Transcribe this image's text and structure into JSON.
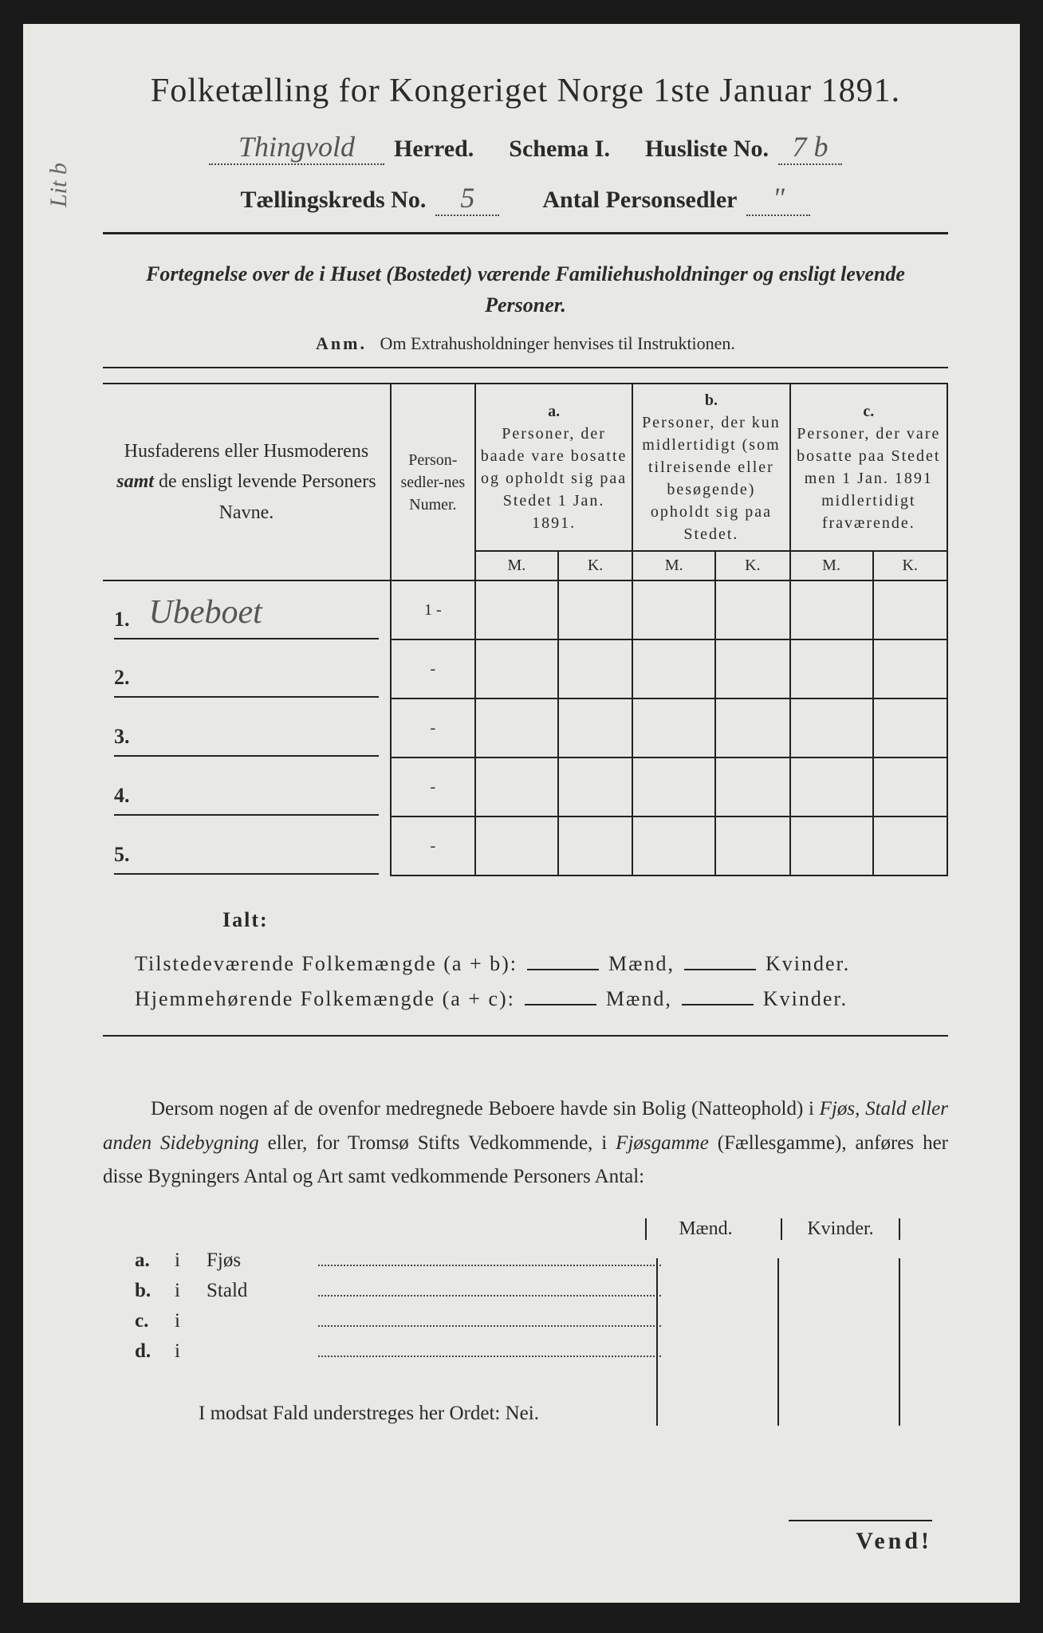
{
  "title": "Folketælling for Kongeriget Norge 1ste Januar 1891.",
  "header": {
    "herred_value": "Thingvold",
    "herred_label": "Herred.",
    "schema_label": "Schema I.",
    "husliste_label": "Husliste No.",
    "husliste_value": "7 b",
    "kreds_label": "Tællingskreds No.",
    "kreds_value": "5",
    "antal_label": "Antal Personsedler",
    "antal_value": "\""
  },
  "subtitle": "Fortegnelse over de i Huset (Bostedet) værende Familiehusholdninger og ensligt levende Personer.",
  "anm_label": "Anm.",
  "anm_text": "Om Extrahusholdninger henvises til Instruktionen.",
  "table": {
    "col1": "Husfaderens eller Husmoderens samt de ensligt levende Personers Navne.",
    "col2": "Person-sedler-nes Numer.",
    "group_a_label": "a.",
    "group_a": "Personer, der baade vare bosatte og opholdt sig paa Stedet 1 Jan. 1891.",
    "group_b_label": "b.",
    "group_b": "Personer, der kun midlertidigt (som tilreisende eller besøgende) opholdt sig paa Stedet.",
    "group_c_label": "c.",
    "group_c": "Personer, der vare bosatte paa Stedet men 1 Jan. 1891 midlertidigt fraværende.",
    "m": "M.",
    "k": "K.",
    "rows": [
      {
        "num": "1.",
        "name": "Ubeboet",
        "pnum": "1 -"
      },
      {
        "num": "2.",
        "name": "",
        "pnum": "-"
      },
      {
        "num": "3.",
        "name": "",
        "pnum": "-"
      },
      {
        "num": "4.",
        "name": "",
        "pnum": "-"
      },
      {
        "num": "5.",
        "name": "",
        "pnum": "-"
      }
    ]
  },
  "ialt": "Ialt:",
  "summary": {
    "line1_a": "Tilstedeværende Folkemængde (a + b):",
    "line2_a": "Hjemmehørende Folkemængde (a + c):",
    "maend": "Mænd,",
    "kvinder": "Kvinder."
  },
  "paragraph": "Dersom nogen af de ovenfor medregnede Beboere havde sin Bolig (Natteophold) i Fjøs, Stald eller anden Sidebygning eller, for Tromsø Stifts Vedkommende, i Fjøsgamme (Fællesgamme), anføres her disse Bygningers Antal og Art samt vedkommende Personers Antal:",
  "buildings": {
    "maend": "Mænd.",
    "kvinder": "Kvinder.",
    "rows": [
      {
        "label": "a.",
        "i": "i",
        "name": "Fjøs"
      },
      {
        "label": "b.",
        "i": "i",
        "name": "Stald"
      },
      {
        "label": "c.",
        "i": "i",
        "name": ""
      },
      {
        "label": "d.",
        "i": "i",
        "name": ""
      }
    ]
  },
  "footer": "I modsat Fald understreges her Ordet: Nei.",
  "vend": "Vend!",
  "margin_note": "Lit b",
  "colors": {
    "page_bg": "#e8e8e4",
    "text": "#2a2a2a",
    "handwriting": "#555555",
    "outer_bg": "#1a1a1a"
  }
}
